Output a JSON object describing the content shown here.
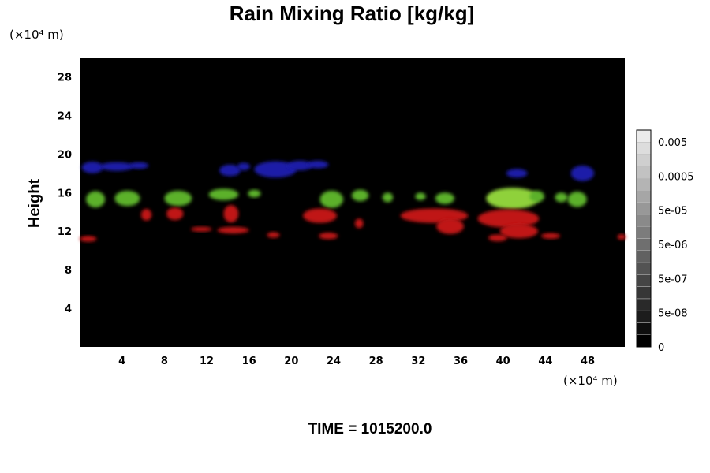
{
  "chart_data": {
    "type": "heatmap",
    "title": "Rain Mixing Ratio [kg/kg]",
    "x_unit": "(×10⁴ m)",
    "y_unit": "(×10⁴ m)",
    "xlabel": "",
    "ylabel": "Height",
    "xlim": [
      0,
      51.5
    ],
    "ylim": [
      0,
      30
    ],
    "x_ticks": [
      4,
      8,
      12,
      16,
      20,
      24,
      28,
      32,
      36,
      40,
      44,
      48
    ],
    "y_ticks": [
      4,
      8,
      12,
      16,
      20,
      24,
      28
    ],
    "background_color": "#000000",
    "colorbar": {
      "ticks": [
        "0.005",
        "0.0005",
        "5e-05",
        "5e-06",
        "5e-07",
        "5e-08",
        "0"
      ],
      "levels": 18,
      "colors": [
        "#000000",
        "#ffffff"
      ]
    },
    "regions": [
      {
        "color": "#1b1fa8",
        "x": 1.2,
        "y": 18.6,
        "rx": 1.0,
        "ry": 0.6
      },
      {
        "color": "#1b1fa8",
        "x": 3.5,
        "y": 18.7,
        "rx": 1.6,
        "ry": 0.45
      },
      {
        "color": "#1b1fa8",
        "x": 5.6,
        "y": 18.8,
        "rx": 0.9,
        "ry": 0.35
      },
      {
        "color": "#1b1fa8",
        "x": 14.2,
        "y": 18.3,
        "rx": 1.0,
        "ry": 0.6
      },
      {
        "color": "#1b1fa8",
        "x": 15.5,
        "y": 18.7,
        "rx": 0.6,
        "ry": 0.4
      },
      {
        "color": "#1b1fa8",
        "x": 18.5,
        "y": 18.4,
        "rx": 2.0,
        "ry": 0.85
      },
      {
        "color": "#1b1fa8",
        "x": 20.8,
        "y": 18.8,
        "rx": 1.2,
        "ry": 0.5
      },
      {
        "color": "#1b1fa8",
        "x": 22.5,
        "y": 18.9,
        "rx": 1.0,
        "ry": 0.4
      },
      {
        "color": "#1b1fa8",
        "x": 41.3,
        "y": 18.0,
        "rx": 1.0,
        "ry": 0.45
      },
      {
        "color": "#1b1fa8",
        "x": 47.5,
        "y": 18.0,
        "rx": 1.1,
        "ry": 0.8
      },
      {
        "color": "#5cb12c",
        "x": 1.5,
        "y": 15.3,
        "rx": 0.9,
        "ry": 0.85
      },
      {
        "color": "#5cb12c",
        "x": 4.5,
        "y": 15.4,
        "rx": 1.2,
        "ry": 0.8
      },
      {
        "color": "#5cb12c",
        "x": 9.3,
        "y": 15.4,
        "rx": 1.3,
        "ry": 0.8
      },
      {
        "color": "#5cb12c",
        "x": 13.6,
        "y": 15.8,
        "rx": 1.4,
        "ry": 0.6
      },
      {
        "color": "#5cb12c",
        "x": 16.5,
        "y": 15.9,
        "rx": 0.6,
        "ry": 0.4
      },
      {
        "color": "#5cb12c",
        "x": 23.8,
        "y": 15.3,
        "rx": 1.1,
        "ry": 0.9
      },
      {
        "color": "#5cb12c",
        "x": 26.5,
        "y": 15.7,
        "rx": 0.8,
        "ry": 0.6
      },
      {
        "color": "#5cb12c",
        "x": 29.1,
        "y": 15.5,
        "rx": 0.5,
        "ry": 0.5
      },
      {
        "color": "#5cb12c",
        "x": 32.2,
        "y": 15.6,
        "rx": 0.5,
        "ry": 0.4
      },
      {
        "color": "#5cb12c",
        "x": 34.5,
        "y": 15.4,
        "rx": 0.9,
        "ry": 0.6
      },
      {
        "color": "#8fd13a",
        "x": 40.9,
        "y": 15.4,
        "rx": 2.5,
        "ry": 1.1
      },
      {
        "color": "#5cb12c",
        "x": 43.2,
        "y": 15.6,
        "rx": 0.7,
        "ry": 0.6
      },
      {
        "color": "#5cb12c",
        "x": 47.0,
        "y": 15.3,
        "rx": 0.9,
        "ry": 0.8
      },
      {
        "color": "#5cb12c",
        "x": 45.5,
        "y": 15.5,
        "rx": 0.6,
        "ry": 0.5
      },
      {
        "color": "#c01414",
        "x": 0.8,
        "y": 11.2,
        "rx": 0.8,
        "ry": 0.3
      },
      {
        "color": "#c01414",
        "x": 6.3,
        "y": 13.7,
        "rx": 0.5,
        "ry": 0.6
      },
      {
        "color": "#c01414",
        "x": 9.0,
        "y": 13.8,
        "rx": 0.8,
        "ry": 0.65
      },
      {
        "color": "#c01414",
        "x": 11.5,
        "y": 12.2,
        "rx": 1.0,
        "ry": 0.25
      },
      {
        "color": "#c01414",
        "x": 14.3,
        "y": 13.8,
        "rx": 0.7,
        "ry": 0.9
      },
      {
        "color": "#c01414",
        "x": 14.5,
        "y": 12.1,
        "rx": 1.5,
        "ry": 0.35
      },
      {
        "color": "#c01414",
        "x": 18.3,
        "y": 11.6,
        "rx": 0.6,
        "ry": 0.3
      },
      {
        "color": "#c01414",
        "x": 22.7,
        "y": 13.6,
        "rx": 1.6,
        "ry": 0.75
      },
      {
        "color": "#c01414",
        "x": 23.5,
        "y": 11.5,
        "rx": 0.9,
        "ry": 0.35
      },
      {
        "color": "#c01414",
        "x": 26.4,
        "y": 12.8,
        "rx": 0.4,
        "ry": 0.5
      },
      {
        "color": "#c01414",
        "x": 33.5,
        "y": 13.6,
        "rx": 3.2,
        "ry": 0.75
      },
      {
        "color": "#c01414",
        "x": 35.0,
        "y": 12.5,
        "rx": 1.3,
        "ry": 0.8
      },
      {
        "color": "#c01414",
        "x": 40.5,
        "y": 13.3,
        "rx": 2.9,
        "ry": 0.95
      },
      {
        "color": "#c01414",
        "x": 41.5,
        "y": 12.0,
        "rx": 1.8,
        "ry": 0.75
      },
      {
        "color": "#c01414",
        "x": 39.5,
        "y": 11.3,
        "rx": 0.9,
        "ry": 0.35
      },
      {
        "color": "#c01414",
        "x": 44.5,
        "y": 11.5,
        "rx": 0.9,
        "ry": 0.3
      },
      {
        "color": "#c01414",
        "x": 51.2,
        "y": 11.4,
        "rx": 0.4,
        "ry": 0.3
      }
    ]
  },
  "footer": {
    "time_label": "TIME = 1015200.0"
  }
}
